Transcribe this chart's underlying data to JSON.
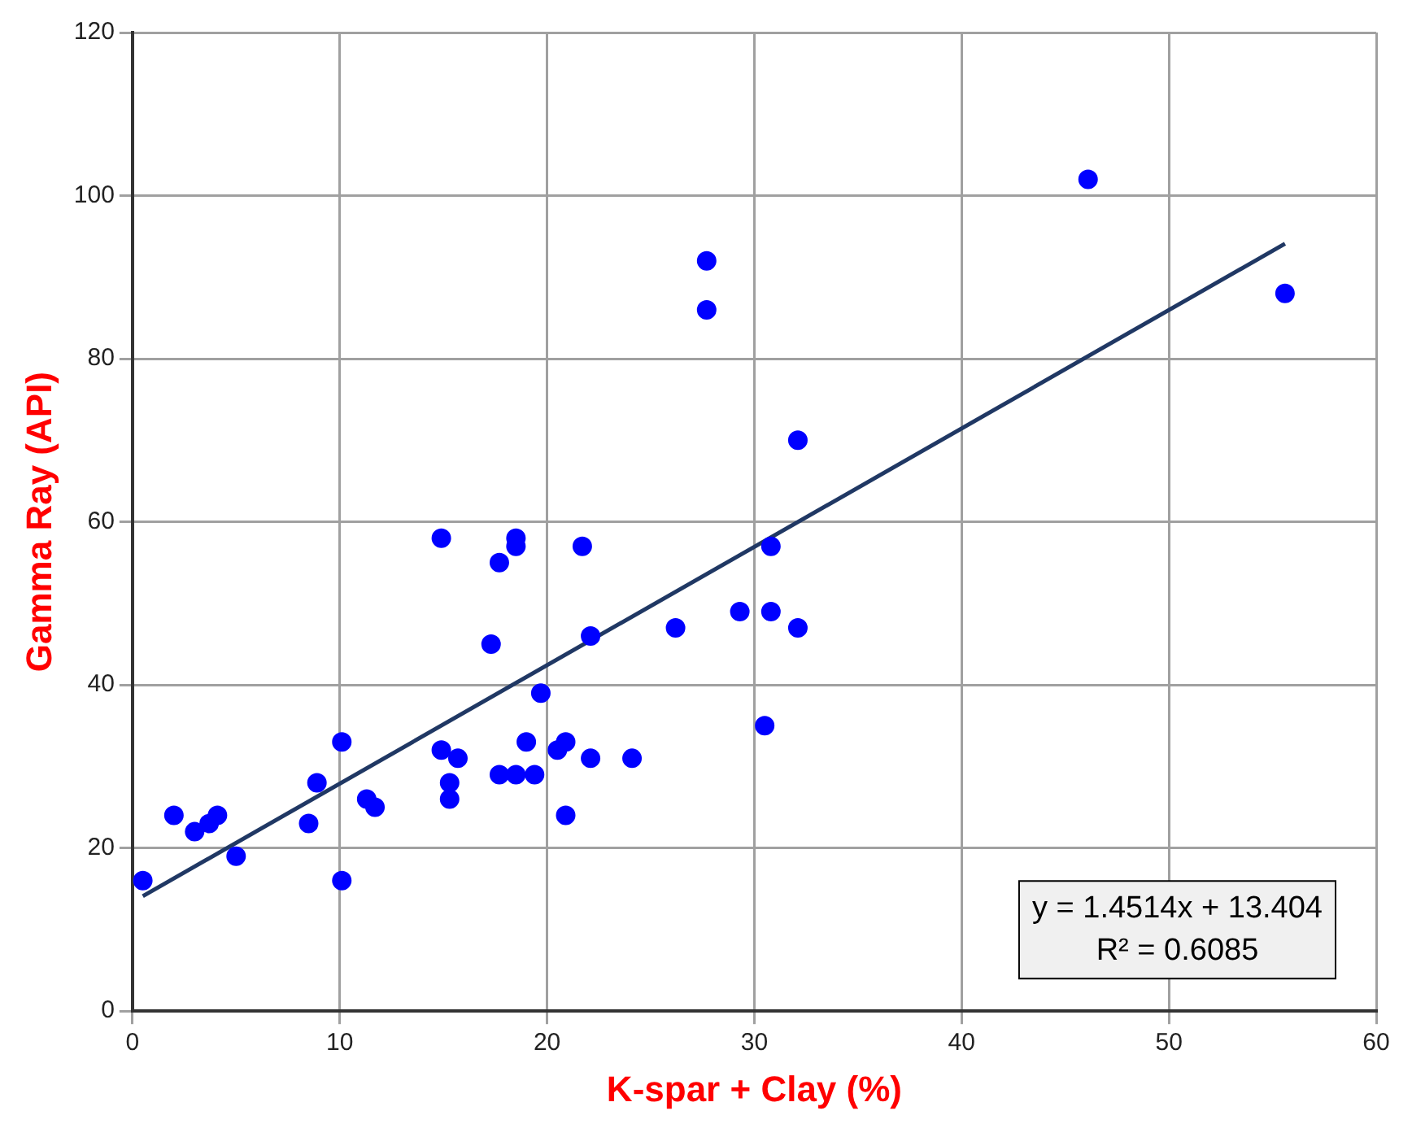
{
  "chart_data": {
    "type": "scatter",
    "xlabel": "K-spar + Clay (%)",
    "ylabel": "Gamma Ray (API)",
    "xlim": [
      0,
      60
    ],
    "xticks": [
      0,
      10,
      20,
      30,
      40,
      50,
      60
    ],
    "ylim": [
      0,
      120
    ],
    "yticks": [
      0,
      20,
      40,
      60,
      80,
      100,
      120
    ],
    "grid": true,
    "series": [
      {
        "type": "scatter",
        "marker": "circle",
        "color": "#0000ff",
        "x": [
          0.5,
          2,
          3,
          3.7,
          4.1,
          5,
          8.5,
          8.9,
          10.1,
          10.1,
          11.3,
          11.7,
          14.9,
          14.9,
          15.3,
          15.3,
          15.7,
          17.3,
          17.7,
          17.7,
          18.5,
          18.5,
          18.5,
          19,
          19.4,
          19.7,
          20.5,
          20.9,
          20.9,
          21.7,
          22.1,
          22.1,
          24.1,
          26.2,
          27.7,
          27.7,
          29.3,
          30.5,
          30.8,
          30.8,
          32.1,
          32.1,
          46.1,
          55.6
        ],
        "values": [
          16,
          24,
          22,
          23,
          24,
          19,
          23,
          28,
          33,
          16,
          26,
          25,
          58,
          32,
          28,
          26,
          31,
          45,
          55,
          29,
          58,
          57,
          29,
          33,
          29,
          39,
          32,
          33,
          24,
          57,
          46,
          31,
          31,
          47,
          92,
          86,
          49,
          35,
          57,
          49,
          70,
          47,
          102,
          88
        ]
      },
      {
        "type": "line",
        "color": "#203864",
        "x": [
          0.5,
          55.6
        ],
        "values": [
          14.1,
          94.1
        ]
      }
    ],
    "annotations": [
      "y = 1.4514x + 13.404",
      "R² = 0.6085"
    ]
  }
}
